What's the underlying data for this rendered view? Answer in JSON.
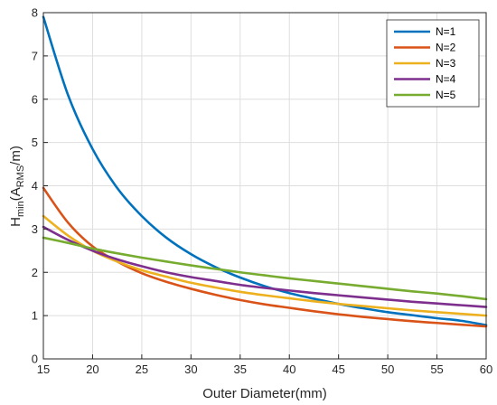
{
  "chart_data": {
    "type": "line",
    "xlabel": "Outer Diameter(mm)",
    "ylabel": {
      "main": "H",
      "sub1": "min",
      "open": "(A",
      "sub2": "RMS",
      "close": "/m)"
    },
    "xlim": [
      15,
      60
    ],
    "ylim": [
      0,
      8
    ],
    "xticks": [
      15,
      20,
      25,
      30,
      35,
      40,
      45,
      50,
      55,
      60
    ],
    "yticks": [
      0,
      1,
      2,
      3,
      4,
      5,
      6,
      7,
      8
    ],
    "grid": true,
    "legend_position": "top-right",
    "x": [
      15,
      17.5,
      20,
      22.5,
      25,
      27.5,
      30,
      32.5,
      35,
      37.5,
      40,
      42.5,
      45,
      47.5,
      50,
      52.5,
      55,
      57.5,
      60
    ],
    "series": [
      {
        "name": "N=1",
        "color": "#0072BD",
        "values": [
          7.9,
          6.1,
          4.85,
          3.95,
          3.3,
          2.8,
          2.42,
          2.12,
          1.88,
          1.68,
          1.52,
          1.39,
          1.27,
          1.17,
          1.08,
          1.01,
          0.94,
          0.88,
          0.78
        ]
      },
      {
        "name": "N=2",
        "color": "#D95319",
        "values": [
          3.95,
          3.15,
          2.6,
          2.25,
          1.98,
          1.78,
          1.62,
          1.48,
          1.36,
          1.26,
          1.18,
          1.1,
          1.03,
          0.97,
          0.92,
          0.87,
          0.83,
          0.79,
          0.75
        ]
      },
      {
        "name": "N=3",
        "color": "#EDB120",
        "values": [
          3.3,
          2.85,
          2.5,
          2.25,
          2.05,
          1.9,
          1.76,
          1.65,
          1.55,
          1.47,
          1.4,
          1.33,
          1.27,
          1.22,
          1.17,
          1.12,
          1.08,
          1.04,
          1.0
        ]
      },
      {
        "name": "N=4",
        "color": "#7E2F8E",
        "values": [
          3.05,
          2.75,
          2.5,
          2.3,
          2.14,
          2.0,
          1.89,
          1.8,
          1.71,
          1.64,
          1.58,
          1.52,
          1.47,
          1.42,
          1.37,
          1.32,
          1.28,
          1.24,
          1.2
        ]
      },
      {
        "name": "N=5",
        "color": "#77AC30",
        "values": [
          2.8,
          2.68,
          2.55,
          2.44,
          2.34,
          2.25,
          2.16,
          2.08,
          2.0,
          1.93,
          1.86,
          1.8,
          1.74,
          1.68,
          1.62,
          1.56,
          1.51,
          1.45,
          1.38
        ]
      }
    ]
  }
}
